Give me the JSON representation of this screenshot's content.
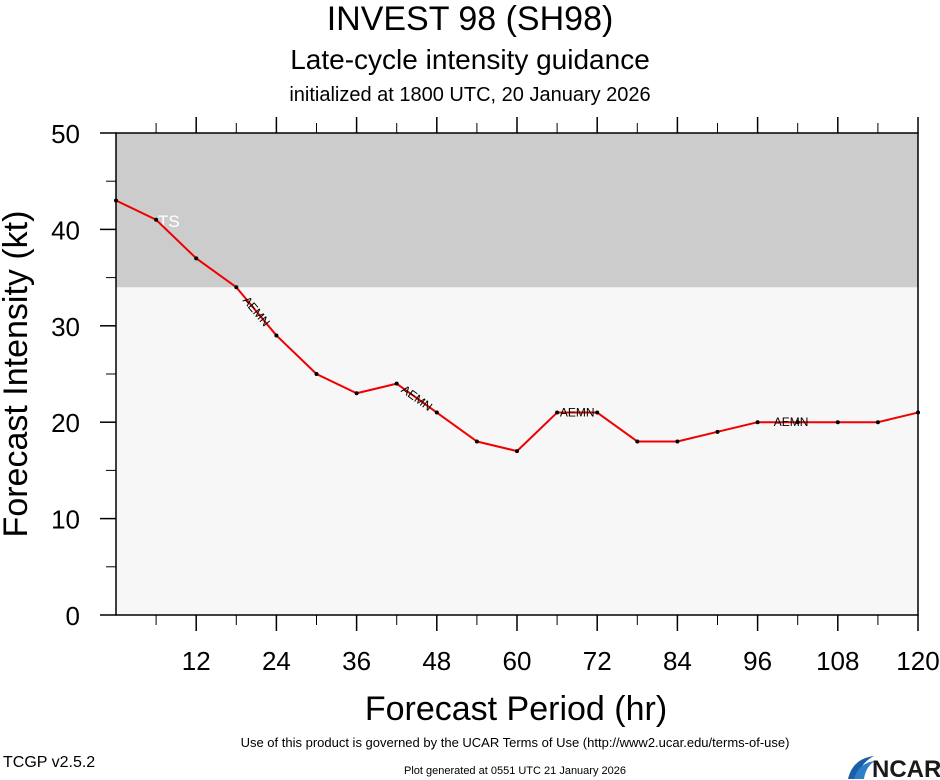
{
  "title": "INVEST 98 (SH98)",
  "subtitle": "Late-cycle intensity guidance",
  "init_line": "initialized at 1800 UTC, 20 January 2026",
  "footer": {
    "terms": "Use of this product is governed by the UCAR Terms of Use (http://www2.ucar.edu/terms-of-use)",
    "version": "TCGP v2.5.2",
    "generated": "Plot generated at 0551 UTC   21 January 2026",
    "logo_text": "NCAR"
  },
  "colors": {
    "ts_band": "#cccccc",
    "below_ts_band": "#f7f7f7",
    "series_line": "#ee0000",
    "points": "#000000"
  },
  "chart_data": {
    "type": "line",
    "xlabel": "Forecast Period (hr)",
    "ylabel": "Forecast Intensity (kt)",
    "xlim": [
      0,
      120
    ],
    "ylim": [
      0,
      50
    ],
    "x_ticks": [
      12,
      24,
      36,
      48,
      60,
      72,
      84,
      96,
      108,
      120
    ],
    "y_ticks": [
      0,
      10,
      20,
      30,
      40,
      50
    ],
    "x_minor_step": 6,
    "y_minor_step": 5,
    "grid": false,
    "bands": [
      {
        "label": "TS",
        "from": 34,
        "to": 50,
        "color": "#cccccc"
      }
    ],
    "series": [
      {
        "name": "AEMN",
        "x": [
          0,
          6,
          12,
          18,
          24,
          30,
          36,
          42,
          48,
          54,
          60,
          66,
          72,
          78,
          84,
          90,
          96,
          102,
          108,
          114,
          120
        ],
        "values": [
          43,
          41,
          37,
          34,
          29,
          25,
          23,
          24,
          21,
          18,
          17,
          21,
          21,
          18,
          18,
          19,
          20,
          20,
          20,
          20,
          21
        ],
        "label_at_x": [
          21,
          45,
          69,
          101
        ]
      }
    ]
  }
}
